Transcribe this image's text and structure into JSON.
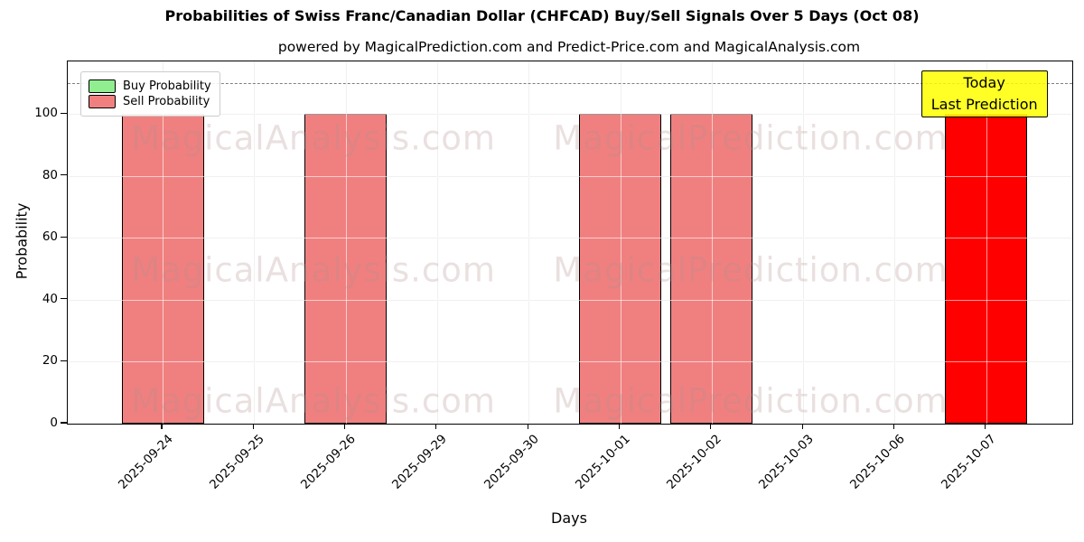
{
  "chart_data": {
    "type": "bar",
    "title": "Probabilities of Swiss Franc/Canadian Dollar (CHFCAD) Buy/Sell Signals Over 5 Days (Oct 08)",
    "subtitle": "powered by MagicalPrediction.com and Predict-Price.com and MagicalAnalysis.com",
    "xlabel": "Days",
    "ylabel": "Probability",
    "categories": [
      "2025-09-24",
      "2025-09-25",
      "2025-09-26",
      "2025-09-29",
      "2025-09-30",
      "2025-10-01",
      "2025-10-02",
      "2025-10-03",
      "2025-10-06",
      "2025-10-07"
    ],
    "series": [
      {
        "name": "Buy Probability",
        "color": "#90EE90",
        "values": [
          0,
          0,
          0,
          0,
          0,
          0,
          0,
          0,
          0,
          0
        ]
      },
      {
        "name": "Sell Probability",
        "color": "#F08080",
        "values": [
          100,
          0,
          100,
          0,
          0,
          100,
          100,
          0,
          0,
          100
        ]
      }
    ],
    "today_index": 9,
    "today_bar_color": "#FF0000",
    "ylim": [
      0,
      117
    ],
    "yticks": [
      0,
      20,
      40,
      60,
      80,
      100
    ],
    "grid": true,
    "legend_position": "upper left",
    "threshold_line": {
      "y": 110,
      "style": "dashed",
      "color": "#7f7f7f"
    },
    "annotation": {
      "lines": [
        "Today",
        "Last Prediction"
      ],
      "bg_color": "#FFFF00"
    },
    "watermarks": [
      "MagicalAnalysis.com",
      "MagicalPrediction.com"
    ]
  }
}
